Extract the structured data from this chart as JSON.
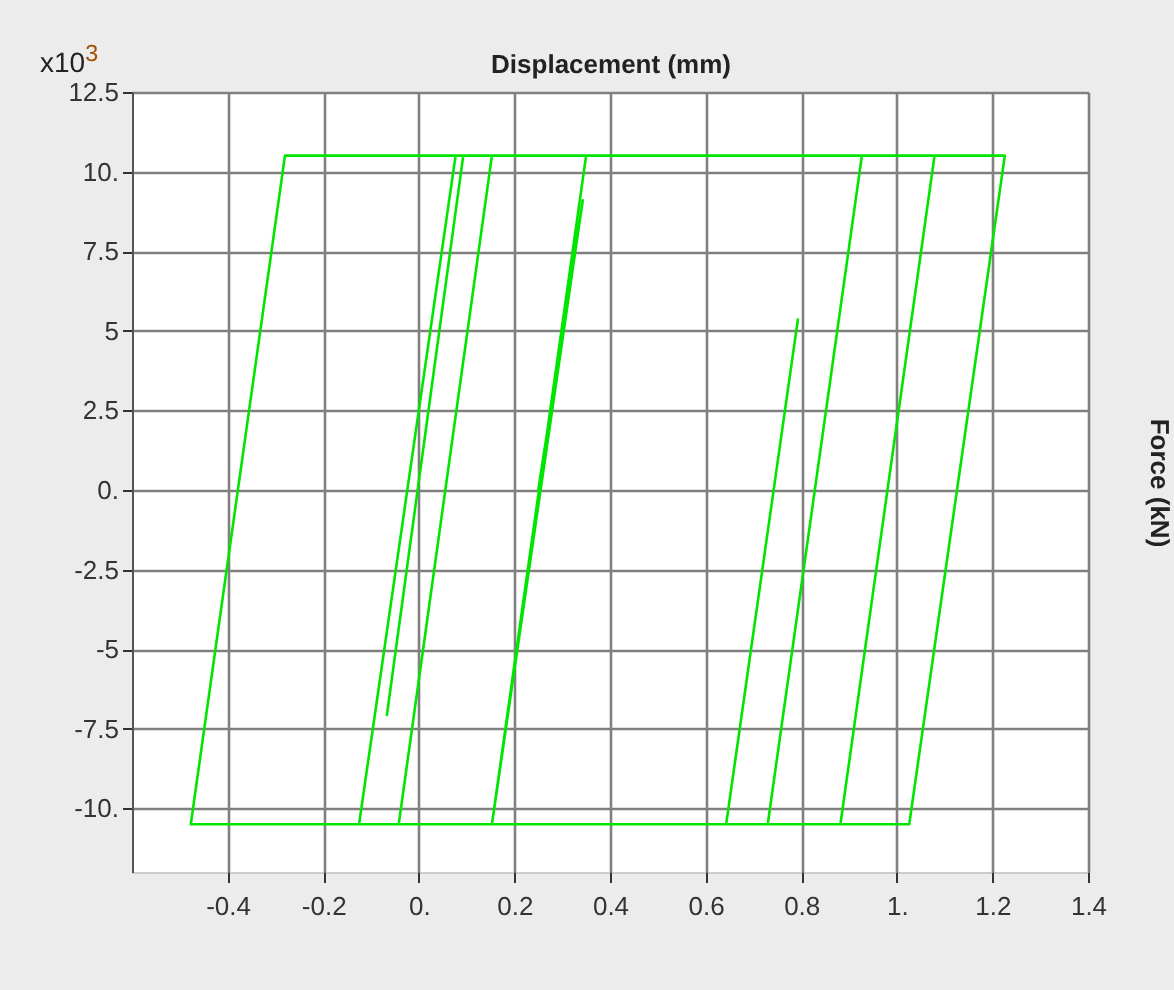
{
  "chart_data": {
    "type": "line",
    "xlabel": "Displacement (mm)",
    "ylabel": "Force (kN)",
    "annotations": [
      "x10$^{3}$"
    ],
    "xlim": [
      -0.6,
      1.4
    ],
    "ylim": [
      -12,
      12.5
    ],
    "xticks": [
      -0.4,
      -0.2,
      {
        "value": 0,
        "label": "0."
      },
      0.2,
      0.4,
      0.6,
      0.8,
      {
        "value": 1,
        "label": "1."
      },
      1.2,
      1.4
    ],
    "yticks": [
      {
        "value": -10,
        "label": "-10."
      },
      -7.5,
      -5,
      -2.5,
      {
        "value": 0,
        "label": "0."
      },
      2.5,
      5,
      7.5,
      {
        "value": 10,
        "label": "10."
      },
      12.5
    ],
    "grid": true,
    "marker": "none",
    "line_style": "solid",
    "series": [
      {
        "color": "#00e600",
        "x": [
          0.25,
          0.343,
          0.153,
          0.35,
          1.079,
          0.882,
          -0.042,
          0.153,
          0.927,
          0.73,
          0.643,
          0.793,
          0.643,
          -0.125,
          0.077,
          1.226,
          1.026,
          -0.477,
          -0.28,
          0.093,
          -0.067
        ],
        "values": [
          0,
          9.1,
          -10.5,
          10.5,
          10.5,
          -10.5,
          -10.5,
          10.5,
          10.5,
          -10.5,
          -10.5,
          5.35,
          -10.5,
          -10.5,
          10.5,
          10.5,
          -10.5,
          -10.5,
          10.5,
          10.5,
          -7.1
        ]
      }
    ]
  }
}
